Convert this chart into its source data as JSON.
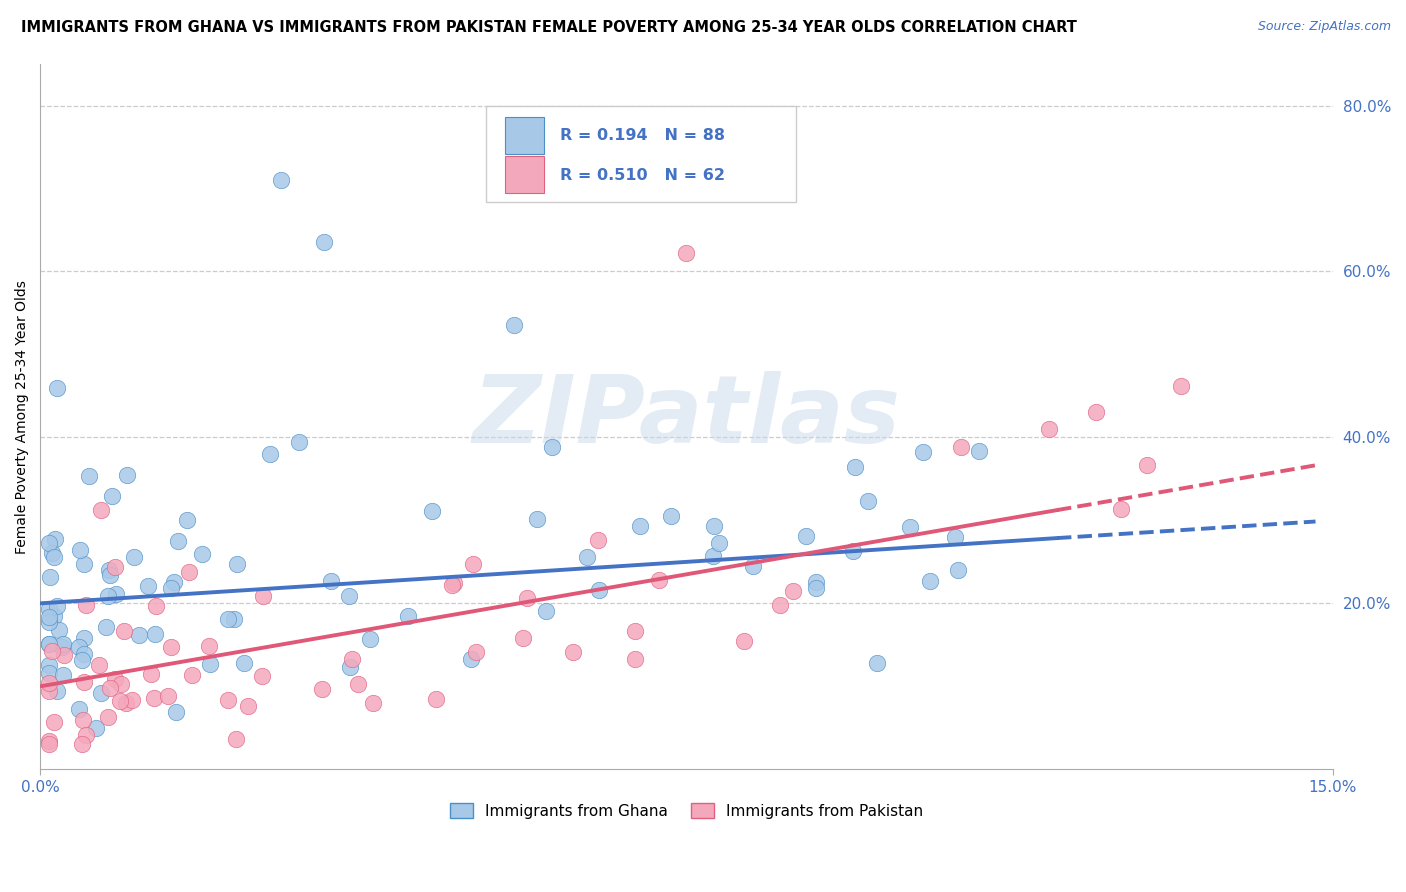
{
  "title": "IMMIGRANTS FROM GHANA VS IMMIGRANTS FROM PAKISTAN FEMALE POVERTY AMONG 25-34 YEAR OLDS CORRELATION CHART",
  "source": "Source: ZipAtlas.com",
  "ylabel": "Female Poverty Among 25-34 Year Olds",
  "xlim": [
    0.0,
    0.15
  ],
  "ylim": [
    0.0,
    0.85
  ],
  "ytick_values": [
    0.2,
    0.4,
    0.6,
    0.8
  ],
  "ytick_labels": [
    "20.0%",
    "40.0%",
    "60.0%",
    "80.0%"
  ],
  "xtick_values": [
    0.0,
    0.15
  ],
  "xtick_labels": [
    "0.0%",
    "15.0%"
  ],
  "ghana_color": "#a8c8e8",
  "ghana_edge_color": "#4a90c8",
  "pakistan_color": "#f4a8bc",
  "pakistan_edge_color": "#e06080",
  "ghana_line_color": "#4472c4",
  "pakistan_line_color": "#e05878",
  "ghana_N": 88,
  "pakistan_N": 62,
  "ghana_line_y0": 0.2,
  "ghana_line_y1": 0.3,
  "pakistan_line_y0": 0.1,
  "pakistan_line_y1": 0.37,
  "legend_label_ghana": "Immigrants from Ghana",
  "legend_label_pakistan": "Immigrants from Pakistan",
  "watermark_text": "ZIPatlas",
  "tick_color": "#4472c4",
  "grid_color": "#cccccc",
  "title_fontsize": 10.5,
  "tick_fontsize": 11,
  "legend_fontsize": 11
}
